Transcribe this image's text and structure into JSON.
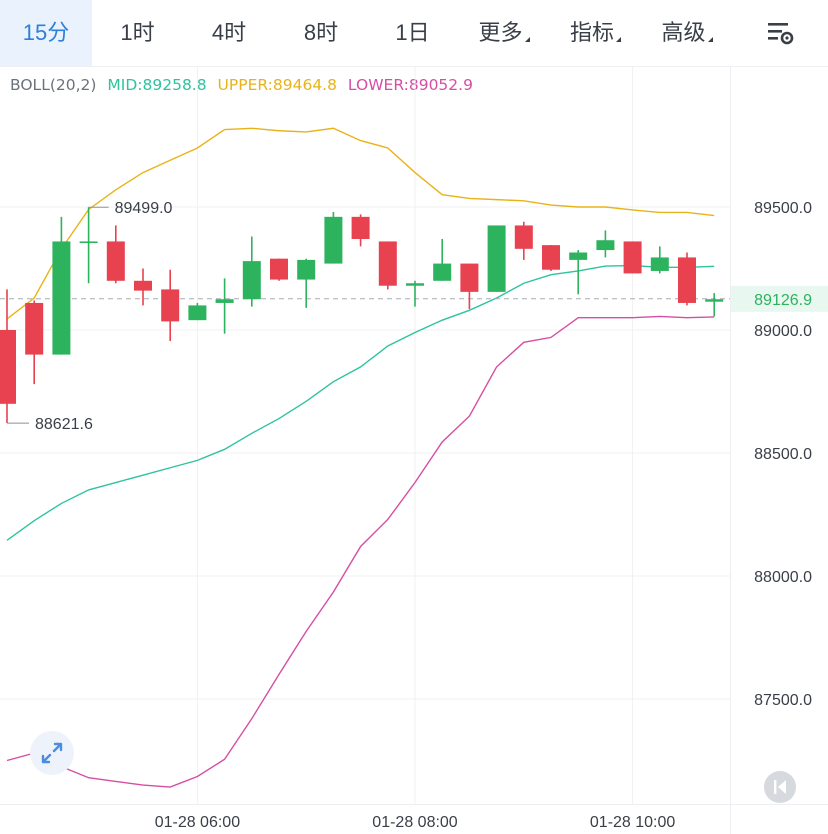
{
  "tabs": [
    {
      "label": "15分",
      "active": true
    },
    {
      "label": "1时",
      "active": false
    },
    {
      "label": "4时",
      "active": false
    },
    {
      "label": "8时",
      "active": false
    },
    {
      "label": "1日",
      "active": false
    },
    {
      "label": "更多",
      "dropdown": true
    },
    {
      "label": "指标",
      "dropdown": true
    },
    {
      "label": "高级",
      "dropdown": true
    }
  ],
  "legend": {
    "name": "BOLL(20,2)",
    "mid": "MID:89258.8",
    "upper": "UPPER:89464.8",
    "lower": "LOWER:89052.9"
  },
  "colors": {
    "up": "#2db35d",
    "down": "#e8414f",
    "mid": "#2ec39e",
    "upper": "#e8b319",
    "lower": "#d64ea2",
    "accent": "#2e7fd8",
    "grid": "#f0f1f3",
    "axis_text": "#3a3f47"
  },
  "icons": {
    "settings": "chart-settings-icon",
    "fullscreen": "expand-icon",
    "back": "rewind-icon"
  },
  "chart_data": {
    "type": "candlestick",
    "indicator": "BOLL(20,2)",
    "y_ticks": [
      89500.0,
      89000.0,
      88500.0,
      88000.0,
      87500.0
    ],
    "y_tick_labels": [
      "89500.0",
      "89000.0",
      "88500.0",
      "88000.0",
      "87500.0"
    ],
    "x_tick_labels": [
      "01-28 06:00",
      "01-28 08:00",
      "01-28 10:00"
    ],
    "x_tick_candle_index": [
      7,
      15,
      23
    ],
    "current_price": 89126.9,
    "current_price_label": "89126.9",
    "high_marker": {
      "value": 89499.0,
      "label": "89499.0",
      "index": 3
    },
    "low_marker": {
      "value": 88621.6,
      "label": "88621.6",
      "index": 0
    },
    "candles": [
      {
        "o": 89000,
        "h": 89165,
        "l": 88622,
        "c": 88700
      },
      {
        "o": 89110,
        "h": 89120,
        "l": 88780,
        "c": 88900
      },
      {
        "o": 88900,
        "h": 89460,
        "l": 88900,
        "c": 89360
      },
      {
        "o": 89360,
        "h": 89499,
        "l": 89190,
        "c": 89360
      },
      {
        "o": 89360,
        "h": 89425,
        "l": 89190,
        "c": 89200
      },
      {
        "o": 89200,
        "h": 89250,
        "l": 89100,
        "c": 89160
      },
      {
        "o": 89165,
        "h": 89245,
        "l": 88955,
        "c": 89035
      },
      {
        "o": 89040,
        "h": 89110,
        "l": 89040,
        "c": 89100
      },
      {
        "o": 89110,
        "h": 89210,
        "l": 88985,
        "c": 89125
      },
      {
        "o": 89125,
        "h": 89380,
        "l": 89095,
        "c": 89280
      },
      {
        "o": 89290,
        "h": 89290,
        "l": 89200,
        "c": 89205
      },
      {
        "o": 89205,
        "h": 89290,
        "l": 89090,
        "c": 89285
      },
      {
        "o": 89270,
        "h": 89480,
        "l": 89270,
        "c": 89460
      },
      {
        "o": 89460,
        "h": 89470,
        "l": 89340,
        "c": 89370
      },
      {
        "o": 89360,
        "h": 89360,
        "l": 89165,
        "c": 89180
      },
      {
        "o": 89180,
        "h": 89200,
        "l": 89095,
        "c": 89190
      },
      {
        "o": 89200,
        "h": 89370,
        "l": 89200,
        "c": 89270
      },
      {
        "o": 89270,
        "h": 89270,
        "l": 89085,
        "c": 89155
      },
      {
        "o": 89155,
        "h": 89425,
        "l": 89155,
        "c": 89425
      },
      {
        "o": 89425,
        "h": 89440,
        "l": 89285,
        "c": 89330
      },
      {
        "o": 89345,
        "h": 89345,
        "l": 89240,
        "c": 89245
      },
      {
        "o": 89285,
        "h": 89325,
        "l": 89145,
        "c": 89315
      },
      {
        "o": 89325,
        "h": 89405,
        "l": 89295,
        "c": 89365
      },
      {
        "o": 89360,
        "h": 89360,
        "l": 89230,
        "c": 89230
      },
      {
        "o": 89240,
        "h": 89340,
        "l": 89230,
        "c": 89295
      },
      {
        "o": 89295,
        "h": 89315,
        "l": 89100,
        "c": 89110
      },
      {
        "o": 89115,
        "h": 89150,
        "l": 89055,
        "c": 89125
      }
    ],
    "boll_upper": [
      89045,
      89130,
      89330,
      89490,
      89570,
      89640,
      89690,
      89740,
      89815,
      89820,
      89810,
      89805,
      89820,
      89770,
      89740,
      89640,
      89550,
      89535,
      89530,
      89525,
      89508,
      89500,
      89500,
      89488,
      89478,
      89478,
      89465
    ],
    "boll_mid": [
      88145,
      88225,
      88295,
      88350,
      88380,
      88410,
      88440,
      88470,
      88515,
      88580,
      88640,
      88710,
      88790,
      88850,
      88935,
      88990,
      89040,
      89080,
      89130,
      89190,
      89225,
      89240,
      89260,
      89262,
      89255,
      89255,
      89259
    ],
    "boll_lower": [
      87250,
      87280,
      87225,
      87180,
      87165,
      87150,
      87142,
      87185,
      87255,
      87420,
      87600,
      87775,
      87935,
      88120,
      88230,
      88380,
      88545,
      88650,
      88850,
      88950,
      88970,
      89050,
      89050,
      89050,
      89055,
      89050,
      89053
    ]
  }
}
